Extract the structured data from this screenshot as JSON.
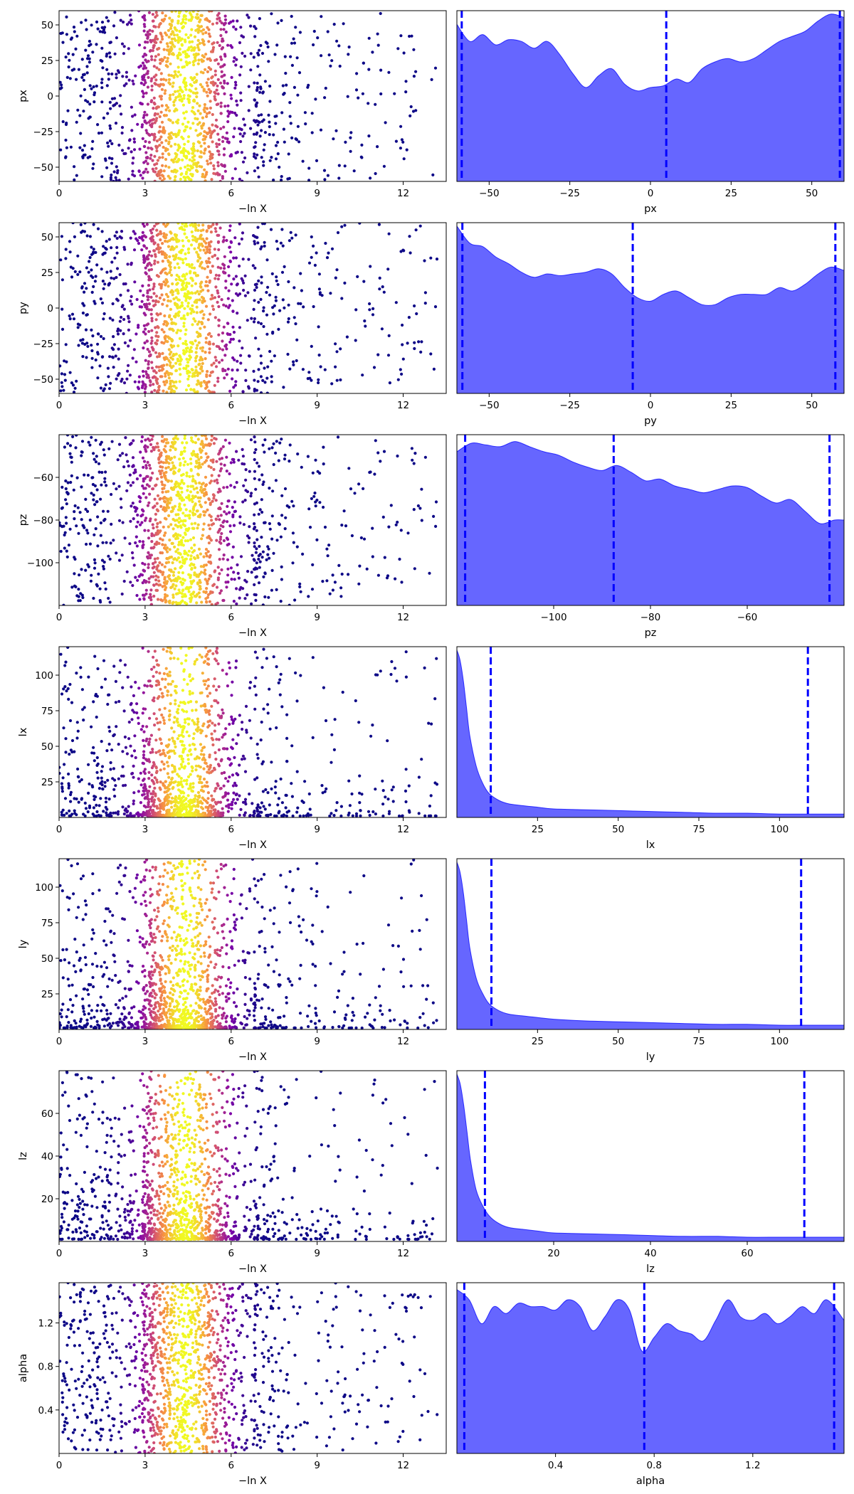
{
  "chart_data": [
    {
      "type": "scatter",
      "panel": "trace-px",
      "xlabel": "−ln X",
      "ylabel": "px",
      "xlim": [
        0,
        13.5
      ],
      "ylim": [
        -60,
        60
      ],
      "xticks": [
        0,
        3,
        6,
        9,
        12
      ],
      "xtick_labels": [
        "0",
        "3",
        "6",
        "9",
        "12"
      ],
      "yticks": [
        -50,
        -25,
        0,
        25,
        50
      ],
      "ytick_labels": [
        "−50",
        "−25",
        "0",
        "25",
        "50"
      ],
      "colormap": "plasma",
      "y_distribution": "uniform",
      "n_points": 1400
    },
    {
      "type": "area",
      "panel": "posterior-px",
      "xlabel": "px",
      "xlim": [
        -60,
        60
      ],
      "xticks": [
        -50,
        -25,
        0,
        25,
        50
      ],
      "xtick_labels": [
        "−50",
        "−25",
        "0",
        "25",
        "50"
      ],
      "density_x": [
        -60,
        -56,
        -52,
        -48,
        -44,
        -40,
        -36,
        -32,
        -28,
        -24,
        -20,
        -16,
        -12,
        -8,
        -4,
        0,
        4,
        8,
        12,
        16,
        20,
        24,
        28,
        32,
        36,
        40,
        44,
        48,
        52,
        56,
        60
      ],
      "density_y": [
        0.92,
        0.82,
        0.86,
        0.8,
        0.83,
        0.82,
        0.78,
        0.82,
        0.74,
        0.63,
        0.55,
        0.62,
        0.66,
        0.57,
        0.53,
        0.55,
        0.56,
        0.6,
        0.58,
        0.66,
        0.7,
        0.72,
        0.7,
        0.72,
        0.77,
        0.82,
        0.85,
        0.88,
        0.94,
        0.98,
        0.96
      ],
      "vlines": [
        -58.5,
        4.9,
        58.7
      ],
      "color": "#0000ff"
    },
    {
      "type": "scatter",
      "panel": "trace-py",
      "xlabel": "−ln X",
      "ylabel": "py",
      "xlim": [
        0,
        13.5
      ],
      "ylim": [
        -60,
        60
      ],
      "xticks": [
        0,
        3,
        6,
        9,
        12
      ],
      "xtick_labels": [
        "0",
        "3",
        "6",
        "9",
        "12"
      ],
      "yticks": [
        -50,
        -25,
        0,
        25,
        50
      ],
      "ytick_labels": [
        "−50",
        "−25",
        "0",
        "25",
        "50"
      ],
      "colormap": "plasma",
      "y_distribution": "uniform",
      "n_points": 1400
    },
    {
      "type": "area",
      "panel": "posterior-py",
      "xlabel": "py",
      "xlim": [
        -60,
        60
      ],
      "xticks": [
        -50,
        -25,
        0,
        25,
        50
      ],
      "xtick_labels": [
        "−50",
        "−25",
        "0",
        "25",
        "50"
      ],
      "density_x": [
        -60,
        -56,
        -52,
        -48,
        -44,
        -40,
        -36,
        -32,
        -28,
        -24,
        -20,
        -16,
        -12,
        -8,
        -4,
        0,
        4,
        8,
        12,
        16,
        20,
        24,
        28,
        32,
        36,
        40,
        44,
        48,
        52,
        56,
        60
      ],
      "density_y": [
        0.98,
        0.88,
        0.86,
        0.8,
        0.76,
        0.71,
        0.68,
        0.7,
        0.69,
        0.7,
        0.71,
        0.73,
        0.7,
        0.62,
        0.56,
        0.54,
        0.58,
        0.6,
        0.56,
        0.52,
        0.52,
        0.56,
        0.58,
        0.58,
        0.58,
        0.62,
        0.6,
        0.64,
        0.7,
        0.74,
        0.72
      ],
      "vlines": [
        -58.3,
        -5.5,
        57.3
      ],
      "color": "#0000ff"
    },
    {
      "type": "scatter",
      "panel": "trace-pz",
      "xlabel": "−ln X",
      "ylabel": "pz",
      "xlim": [
        0,
        13.5
      ],
      "ylim": [
        -120,
        -40
      ],
      "xticks": [
        0,
        3,
        6,
        9,
        12
      ],
      "xtick_labels": [
        "0",
        "3",
        "6",
        "9",
        "12"
      ],
      "yticks": [
        -100,
        -80,
        -60
      ],
      "ytick_labels": [
        "−100",
        "−80",
        "−60"
      ],
      "colormap": "plasma",
      "y_distribution": "uniform",
      "n_points": 1400
    },
    {
      "type": "area",
      "panel": "posterior-pz",
      "xlabel": "pz",
      "xlim": [
        -120,
        -40
      ],
      "xticks": [
        -100,
        -80,
        -60
      ],
      "xtick_labels": [
        "−100",
        "−80",
        "−60"
      ],
      "density_x": [
        -120,
        -117,
        -114,
        -111,
        -108,
        -105,
        -102,
        -99,
        -96,
        -93,
        -90,
        -87,
        -84,
        -81,
        -78,
        -75,
        -72,
        -69,
        -66,
        -63,
        -60,
        -57,
        -54,
        -51,
        -48,
        -45,
        -42,
        -40
      ],
      "density_y": [
        0.9,
        0.95,
        0.94,
        0.93,
        0.96,
        0.93,
        0.9,
        0.88,
        0.84,
        0.81,
        0.79,
        0.82,
        0.78,
        0.73,
        0.74,
        0.7,
        0.68,
        0.66,
        0.68,
        0.7,
        0.69,
        0.64,
        0.6,
        0.62,
        0.55,
        0.48,
        0.5,
        0.5
      ],
      "vlines": [
        -118.3,
        -87.6,
        -43.0
      ],
      "color": "#0000ff"
    },
    {
      "type": "scatter",
      "panel": "trace-lx",
      "xlabel": "−ln X",
      "ylabel": "lx",
      "xlim": [
        0,
        13.5
      ],
      "ylim": [
        0,
        120
      ],
      "xticks": [
        0,
        3,
        6,
        9,
        12
      ],
      "xtick_labels": [
        "0",
        "3",
        "6",
        "9",
        "12"
      ],
      "yticks": [
        25,
        50,
        75,
        100
      ],
      "ytick_labels": [
        "25",
        "50",
        "75",
        "100"
      ],
      "colormap": "plasma",
      "y_distribution": "log-prior",
      "n_points": 1400
    },
    {
      "type": "area",
      "panel": "posterior-lx",
      "xlabel": "lx",
      "xlim": [
        0,
        120
      ],
      "xticks": [
        25,
        50,
        75,
        100
      ],
      "xtick_labels": [
        "25",
        "50",
        "75",
        "100"
      ],
      "density_x": [
        0,
        1,
        2,
        3,
        4,
        6,
        8,
        10,
        13,
        16,
        20,
        25,
        30,
        40,
        50,
        60,
        70,
        80,
        90,
        100,
        110,
        120
      ],
      "density_y": [
        0.98,
        0.92,
        0.8,
        0.64,
        0.48,
        0.3,
        0.2,
        0.14,
        0.1,
        0.08,
        0.07,
        0.06,
        0.05,
        0.045,
        0.04,
        0.035,
        0.03,
        0.025,
        0.025,
        0.02,
        0.02,
        0.02
      ],
      "vlines": [
        10.5,
        108.8
      ],
      "color": "#0000ff"
    },
    {
      "type": "scatter",
      "panel": "trace-ly",
      "xlabel": "−ln X",
      "ylabel": "ly",
      "xlim": [
        0,
        13.5
      ],
      "ylim": [
        0,
        120
      ],
      "xticks": [
        0,
        3,
        6,
        9,
        12
      ],
      "xtick_labels": [
        "0",
        "3",
        "6",
        "9",
        "12"
      ],
      "yticks": [
        25,
        50,
        75,
        100
      ],
      "ytick_labels": [
        "25",
        "50",
        "75",
        "100"
      ],
      "colormap": "plasma",
      "y_distribution": "log-prior",
      "n_points": 1400
    },
    {
      "type": "area",
      "panel": "posterior-ly",
      "xlabel": "ly",
      "xlim": [
        0,
        120
      ],
      "xticks": [
        25,
        50,
        75,
        100
      ],
      "xtick_labels": [
        "25",
        "50",
        "75",
        "100"
      ],
      "density_x": [
        0,
        1,
        2,
        3,
        4,
        6,
        8,
        10,
        13,
        16,
        20,
        25,
        30,
        40,
        50,
        60,
        70,
        80,
        90,
        100,
        110,
        120
      ],
      "density_y": [
        0.98,
        0.92,
        0.8,
        0.64,
        0.48,
        0.3,
        0.21,
        0.15,
        0.11,
        0.09,
        0.08,
        0.07,
        0.06,
        0.05,
        0.045,
        0.04,
        0.035,
        0.03,
        0.03,
        0.025,
        0.025,
        0.025
      ],
      "vlines": [
        10.7,
        106.7
      ],
      "color": "#0000ff"
    },
    {
      "type": "scatter",
      "panel": "trace-lz",
      "xlabel": "−ln X",
      "ylabel": "lz",
      "xlim": [
        0,
        13.5
      ],
      "ylim": [
        0,
        80
      ],
      "xticks": [
        0,
        3,
        6,
        9,
        12
      ],
      "xtick_labels": [
        "0",
        "3",
        "6",
        "9",
        "12"
      ],
      "yticks": [
        20,
        40,
        60
      ],
      "ytick_labels": [
        "20",
        "40",
        "60"
      ],
      "colormap": "plasma",
      "y_distribution": "log-prior",
      "n_points": 1400
    },
    {
      "type": "area",
      "panel": "posterior-lz",
      "xlabel": "lz",
      "xlim": [
        0,
        80
      ],
      "xticks": [
        20,
        40,
        60
      ],
      "xtick_labels": [
        "20",
        "40",
        "60"
      ],
      "density_x": [
        0,
        0.7,
        1.4,
        2.1,
        2.8,
        4,
        5.5,
        7,
        9,
        11,
        14,
        17,
        20,
        27,
        34,
        40,
        47,
        54,
        60,
        67,
        74,
        80
      ],
      "density_y": [
        0.98,
        0.92,
        0.8,
        0.64,
        0.48,
        0.3,
        0.2,
        0.14,
        0.1,
        0.08,
        0.07,
        0.06,
        0.05,
        0.045,
        0.04,
        0.035,
        0.03,
        0.03,
        0.025,
        0.025,
        0.025,
        0.025
      ],
      "vlines": [
        5.8,
        71.8
      ],
      "color": "#0000ff"
    },
    {
      "type": "scatter",
      "panel": "trace-alpha",
      "xlabel": "−ln X",
      "ylabel": "alpha",
      "xlim": [
        0,
        13.5
      ],
      "ylim": [
        0,
        1.57
      ],
      "xticks": [
        0,
        3,
        6,
        9,
        12
      ],
      "xtick_labels": [
        "0",
        "3",
        "6",
        "9",
        "12"
      ],
      "yticks": [
        0.4,
        0.8,
        1.2
      ],
      "ytick_labels": [
        "0.4",
        "0.8",
        "1.2"
      ],
      "colormap": "plasma",
      "y_distribution": "uniform",
      "n_points": 1400
    },
    {
      "type": "area",
      "panel": "posterior-alpha",
      "xlabel": "alpha",
      "xlim": [
        0,
        1.57
      ],
      "xticks": [
        0.4,
        0.8,
        1.2
      ],
      "xtick_labels": [
        "0.4",
        "0.8",
        "1.2"
      ],
      "density_x": [
        0,
        0.05,
        0.1,
        0.15,
        0.2,
        0.25,
        0.3,
        0.35,
        0.4,
        0.45,
        0.5,
        0.55,
        0.6,
        0.65,
        0.7,
        0.75,
        0.8,
        0.85,
        0.9,
        0.95,
        1.0,
        1.05,
        1.1,
        1.15,
        1.2,
        1.25,
        1.3,
        1.35,
        1.4,
        1.45,
        1.5,
        1.57
      ],
      "density_y": [
        0.96,
        0.9,
        0.76,
        0.86,
        0.82,
        0.88,
        0.86,
        0.86,
        0.84,
        0.9,
        0.86,
        0.72,
        0.8,
        0.9,
        0.84,
        0.6,
        0.68,
        0.76,
        0.72,
        0.7,
        0.66,
        0.78,
        0.9,
        0.8,
        0.78,
        0.82,
        0.76,
        0.8,
        0.86,
        0.82,
        0.9,
        0.78
      ],
      "vlines": [
        0.03,
        0.76,
        1.53
      ],
      "color": "#0000ff"
    }
  ]
}
